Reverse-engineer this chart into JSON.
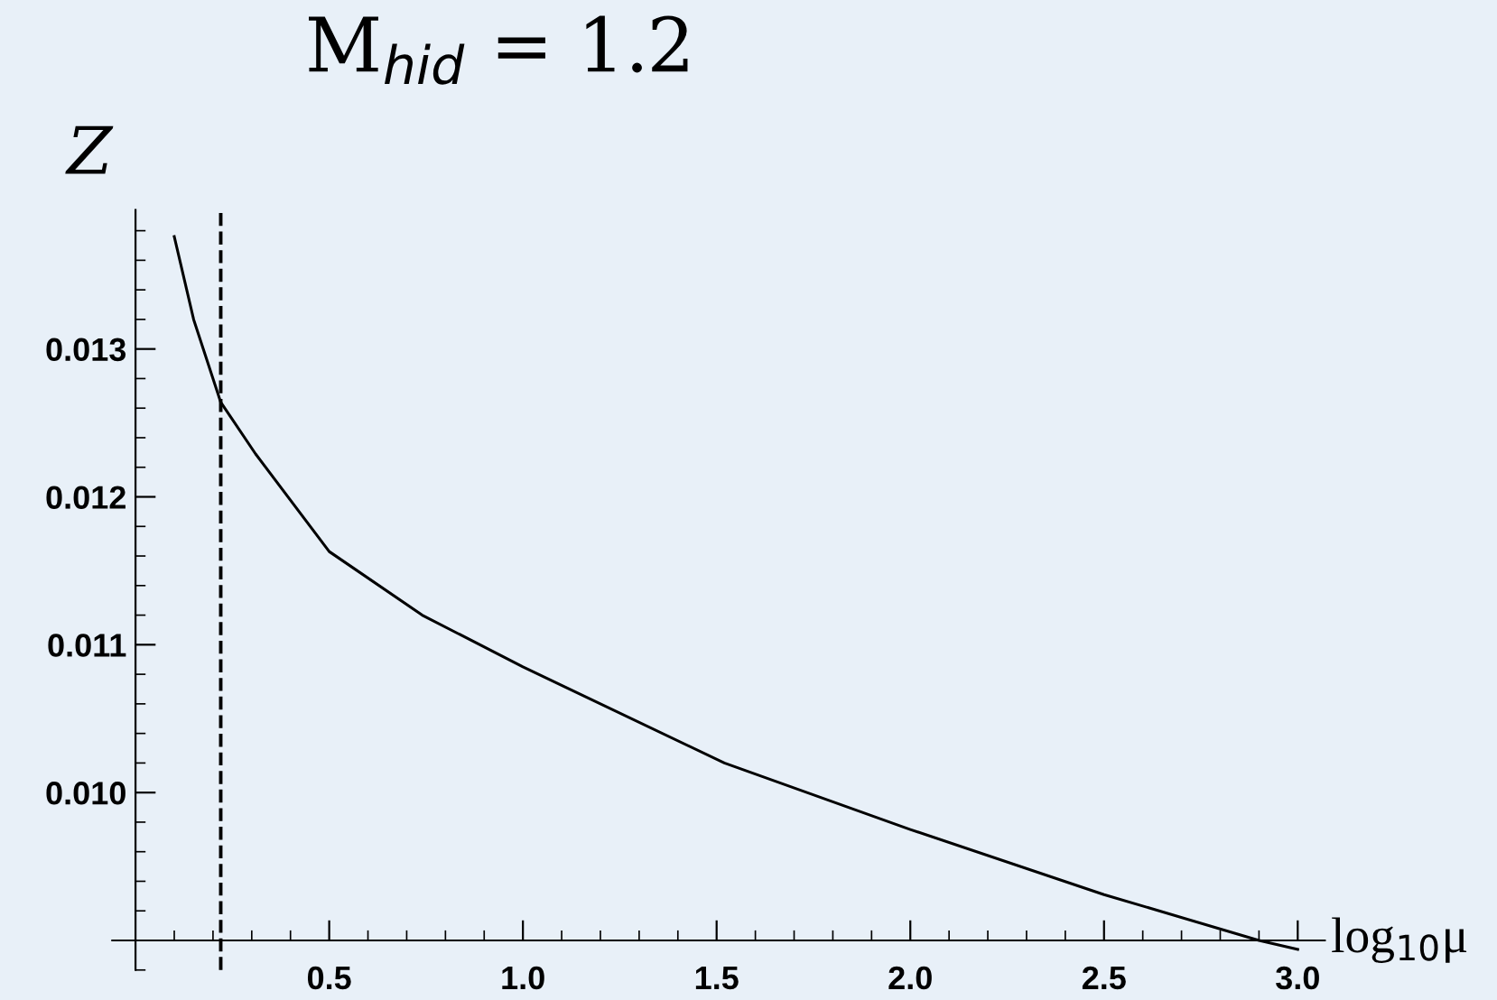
{
  "chart_data": {
    "type": "line",
    "title": "M$_{hid}$ = 1.2",
    "xlabel": "log$_{10}$μ",
    "ylabel": "Z",
    "x": [
      0.1,
      0.15,
      0.22,
      0.31,
      0.5,
      0.74,
      1.0,
      1.52,
      2.0,
      2.5,
      2.9,
      3.0
    ],
    "series": [
      {
        "color": "#000000",
        "values": [
          0.01376,
          0.0132,
          0.01264,
          0.01229,
          0.01163,
          0.0112,
          0.01085,
          0.0102,
          0.00975,
          0.00931,
          0.009,
          0.00894
        ]
      }
    ],
    "xlim": [
      -0.06,
      3.07
    ],
    "ylim": [
      0.0088,
      0.01394
    ],
    "xticks": [
      0.5,
      {
        "value": 1.0,
        "label": "1.0"
      },
      1.5,
      {
        "value": 2.0,
        "label": "2.0"
      },
      2.5,
      {
        "value": 3.0,
        "label": "3.0"
      }
    ],
    "yticks": [
      {
        "value": 0.01,
        "label": "0.010"
      },
      0.011,
      0.012,
      0.013
    ],
    "ref_lines": [
      {
        "axis": "x",
        "value": 0.22,
        "color": "#000000",
        "line_style": "dashed"
      }
    ],
    "grid": false,
    "legend": false,
    "line_style": "solid",
    "marker": "none"
  }
}
